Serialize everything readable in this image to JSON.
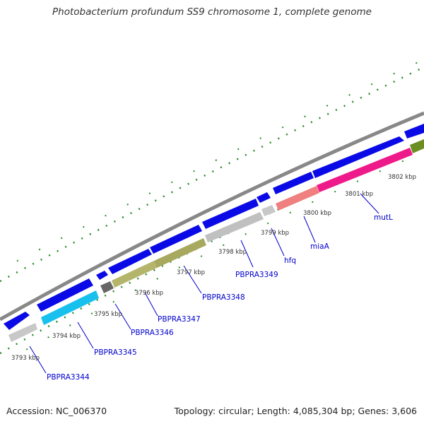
{
  "title": "Photobacterium profundum SS9 chromosome 1, complete genome",
  "footer": {
    "accession": "Accession: NC_006370",
    "summary": "Topology: circular; Length: 4,085,304 bp; Genes: 3,606"
  },
  "colors": {
    "backbone": "#888888",
    "forward_gene": "#0a0ae6",
    "tick": "#2a8a2a",
    "label": "#0000cc",
    "kbp_label": "#333333",
    "PBPRA3344": "#c8c8c8",
    "PBPRA3345": "#18c0ee",
    "PBPRA3346": "#666666",
    "PBPRA3347": "#b4b46a",
    "PBPRA3348": "#b4b46a",
    "PBPRA3349": "#c0c0c0",
    "hfq": "#c8c8c8",
    "miaA": "#f08080",
    "mutL": "#ee1a8a",
    "next_gene": "#6b8e23"
  },
  "kbp_labels": [
    "3793 kbp",
    "3794 kbp",
    "3795 kbp",
    "3796 kbp",
    "3797 kbp",
    "3798 kbp",
    "3799 kbp",
    "3800 kbp",
    "3801 kbp",
    "3802 kbp"
  ],
  "genes": [
    "PBPRA3344",
    "PBPRA3345",
    "PBPRA3346",
    "PBPRA3347",
    "PBPRA3348",
    "PBPRA3349",
    "hfq",
    "miaA",
    "mutL"
  ]
}
